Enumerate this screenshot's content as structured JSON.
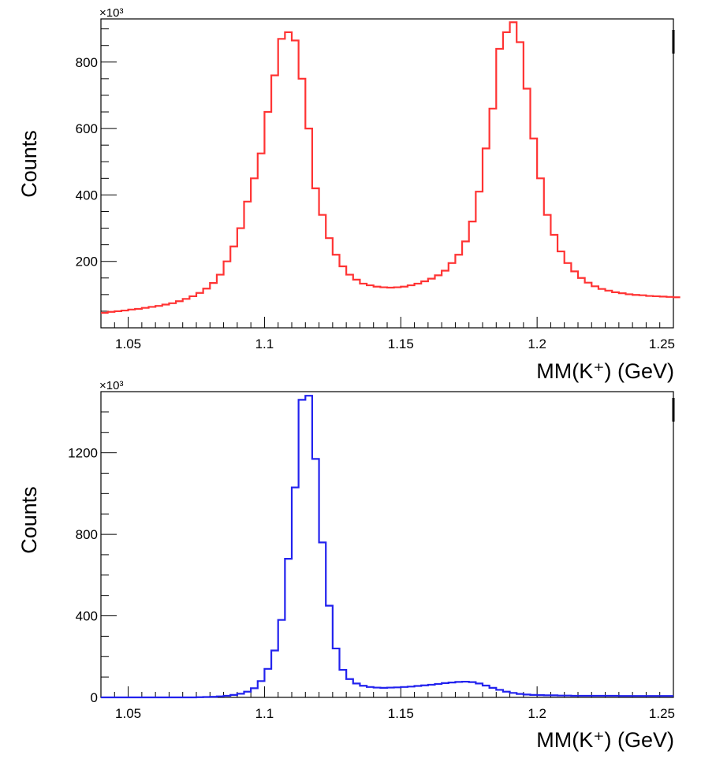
{
  "chart_data": [
    {
      "type": "histogram",
      "title": "",
      "xlabel": "MM(K⁺) (GeV)",
      "ylabel": "Counts",
      "exponent_label": "×10³",
      "xlim": [
        1.04,
        1.25
      ],
      "ylim": [
        0,
        930
      ],
      "grid": false,
      "line_color": "#ff3333",
      "x_ticks": [
        {
          "value": 1.05,
          "label": "1.05"
        },
        {
          "value": 1.1,
          "label": "1.1"
        },
        {
          "value": 1.15,
          "label": "1.15"
        },
        {
          "value": 1.2,
          "label": "1.2"
        },
        {
          "value": 1.25,
          "label": "1.25"
        }
      ],
      "y_ticks": [
        {
          "value": 200,
          "label": "200"
        },
        {
          "value": 400,
          "label": "400"
        },
        {
          "value": 600,
          "label": "600"
        },
        {
          "value": 800,
          "label": "800"
        }
      ],
      "bin_edges_start": 1.04,
      "bin_width": 0.0025,
      "values": [
        45,
        48,
        50,
        52,
        55,
        57,
        60,
        63,
        66,
        70,
        74,
        80,
        87,
        95,
        105,
        118,
        135,
        160,
        200,
        245,
        300,
        380,
        450,
        525,
        650,
        760,
        870,
        890,
        865,
        750,
        600,
        420,
        340,
        270,
        220,
        185,
        160,
        145,
        133,
        128,
        124,
        122,
        121,
        122,
        124,
        128,
        133,
        140,
        148,
        158,
        172,
        195,
        220,
        260,
        320,
        410,
        540,
        660,
        840,
        890,
        920,
        860,
        720,
        570,
        450,
        340,
        280,
        230,
        195,
        170,
        150,
        136,
        125,
        117,
        112,
        107,
        104,
        101,
        99,
        98,
        96,
        95,
        94,
        93,
        92,
        92
      ]
    },
    {
      "type": "histogram",
      "title": "",
      "xlabel": "MM(K⁺) (GeV)",
      "ylabel": "Counts",
      "exponent_label": "×10³",
      "xlim": [
        1.04,
        1.25
      ],
      "ylim": [
        0,
        1500
      ],
      "grid": false,
      "line_color": "#2222ee",
      "x_ticks": [
        {
          "value": 1.05,
          "label": "1.05"
        },
        {
          "value": 1.1,
          "label": "1.1"
        },
        {
          "value": 1.15,
          "label": "1.15"
        },
        {
          "value": 1.2,
          "label": "1.2"
        },
        {
          "value": 1.25,
          "label": "1.25"
        }
      ],
      "y_ticks": [
        {
          "value": 0,
          "label": "0"
        },
        {
          "value": 400,
          "label": "400"
        },
        {
          "value": 800,
          "label": "800"
        },
        {
          "value": 1200,
          "label": "1200"
        }
      ],
      "bin_edges_start": 1.04,
      "bin_width": 0.0025,
      "values": [
        0,
        0,
        0,
        0,
        0,
        0,
        0,
        0,
        0,
        0,
        0,
        0,
        0,
        0,
        1,
        2,
        3,
        5,
        8,
        12,
        18,
        28,
        45,
        80,
        140,
        230,
        380,
        680,
        1030,
        1460,
        1480,
        1170,
        760,
        450,
        240,
        135,
        90,
        68,
        57,
        51,
        48,
        47,
        48,
        49,
        51,
        53,
        56,
        59,
        62,
        66,
        70,
        73,
        76,
        77,
        75,
        68,
        58,
        47,
        37,
        28,
        22,
        17,
        14,
        12,
        11,
        10,
        10,
        9,
        9,
        8,
        8,
        8,
        8,
        8,
        8,
        8,
        7,
        7,
        7,
        7,
        7,
        7,
        7,
        7
      ]
    }
  ]
}
